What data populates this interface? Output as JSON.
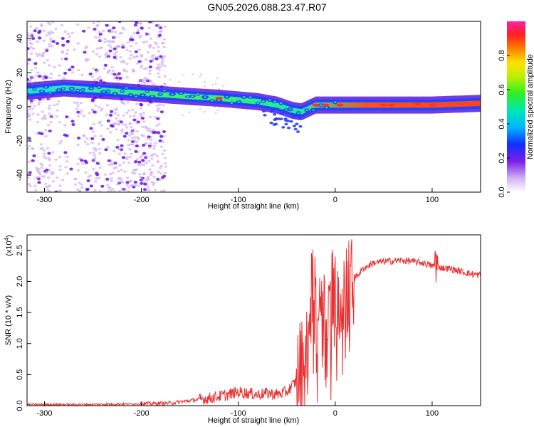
{
  "title": "GN05.2026.088.23.47.R07",
  "chart_data": [
    {
      "type": "heatmap",
      "name": "spectrogram",
      "xlabel": "Height of straight line (km)",
      "ylabel": "Frequency (Hz)",
      "xlim": [
        -318,
        150
      ],
      "ylim": [
        -50,
        50
      ],
      "xticks": [
        -300,
        -200,
        -100,
        0,
        100
      ],
      "yticks": [
        -40,
        -20,
        0,
        20,
        40
      ],
      "xtick_labels": [
        "-300",
        "-200",
        "-100",
        "0",
        "100"
      ],
      "ytick_labels": [
        "-40",
        "-20",
        "0",
        "20",
        "40"
      ],
      "colorbar": {
        "label": "Normalized spectral amplitude",
        "range": [
          0,
          1
        ],
        "ticks": [
          0.0,
          0.2,
          0.4,
          0.6,
          0.8
        ],
        "tick_labels": [
          "0.0",
          "0.2",
          "0.4",
          "0.6",
          "0.8"
        ]
      },
      "ridge": {
        "x": [
          -318,
          -280,
          -250,
          -200,
          -150,
          -120,
          -100,
          -80,
          -60,
          -45,
          -35,
          -20,
          0,
          50,
          100,
          150
        ],
        "y": [
          9,
          11,
          10,
          8,
          6,
          5,
          4,
          3,
          1,
          -2,
          -3,
          1,
          1,
          1,
          1,
          2
        ]
      },
      "scatter_region_km": [
        -318,
        -175
      ]
    },
    {
      "type": "line",
      "name": "snr",
      "xlabel": "Height of straight line (km)",
      "ylabel": "SNR (10 * v/v)",
      "y_multiplier": "(x10^4)",
      "xlim": [
        -318,
        150
      ],
      "ylim": [
        0,
        2.75
      ],
      "xticks": [
        -300,
        -200,
        -100,
        0,
        100
      ],
      "yticks": [
        0.0,
        0.5,
        1.0,
        1.5,
        2.0,
        2.5
      ],
      "xtick_labels": [
        "-300",
        "-200",
        "-100",
        "0",
        "100"
      ],
      "ytick_labels": [
        "0.0",
        "0.5",
        "1.0",
        "1.5",
        "2.0",
        "2.5"
      ],
      "series": [
        {
          "name": "SNR",
          "color": "#e83030",
          "x": [
            -318,
            -250,
            -200,
            -170,
            -150,
            -130,
            -110,
            -100,
            -90,
            -80,
            -70,
            -60,
            -50,
            -40,
            -35,
            -30,
            -25,
            -22,
            -20,
            -18,
            -15,
            -12,
            -10,
            -5,
            0,
            5,
            10,
            15,
            20,
            30,
            40,
            50,
            60,
            70,
            80,
            90,
            100,
            105,
            110,
            120,
            130,
            140,
            150
          ],
          "y": [
            0.02,
            0.02,
            0.03,
            0.04,
            0.08,
            0.12,
            0.18,
            0.22,
            0.2,
            0.18,
            0.2,
            0.18,
            0.22,
            0.4,
            0.6,
            0.8,
            1.4,
            1.9,
            1.5,
            1.6,
            1.9,
            1.7,
            1.0,
            1.6,
            1.8,
            1.9,
            2.0,
            1.8,
            2.05,
            2.22,
            2.3,
            2.32,
            2.33,
            2.34,
            2.32,
            2.3,
            2.25,
            2.25,
            2.22,
            2.2,
            2.16,
            2.12,
            2.1
          ]
        }
      ]
    }
  ]
}
